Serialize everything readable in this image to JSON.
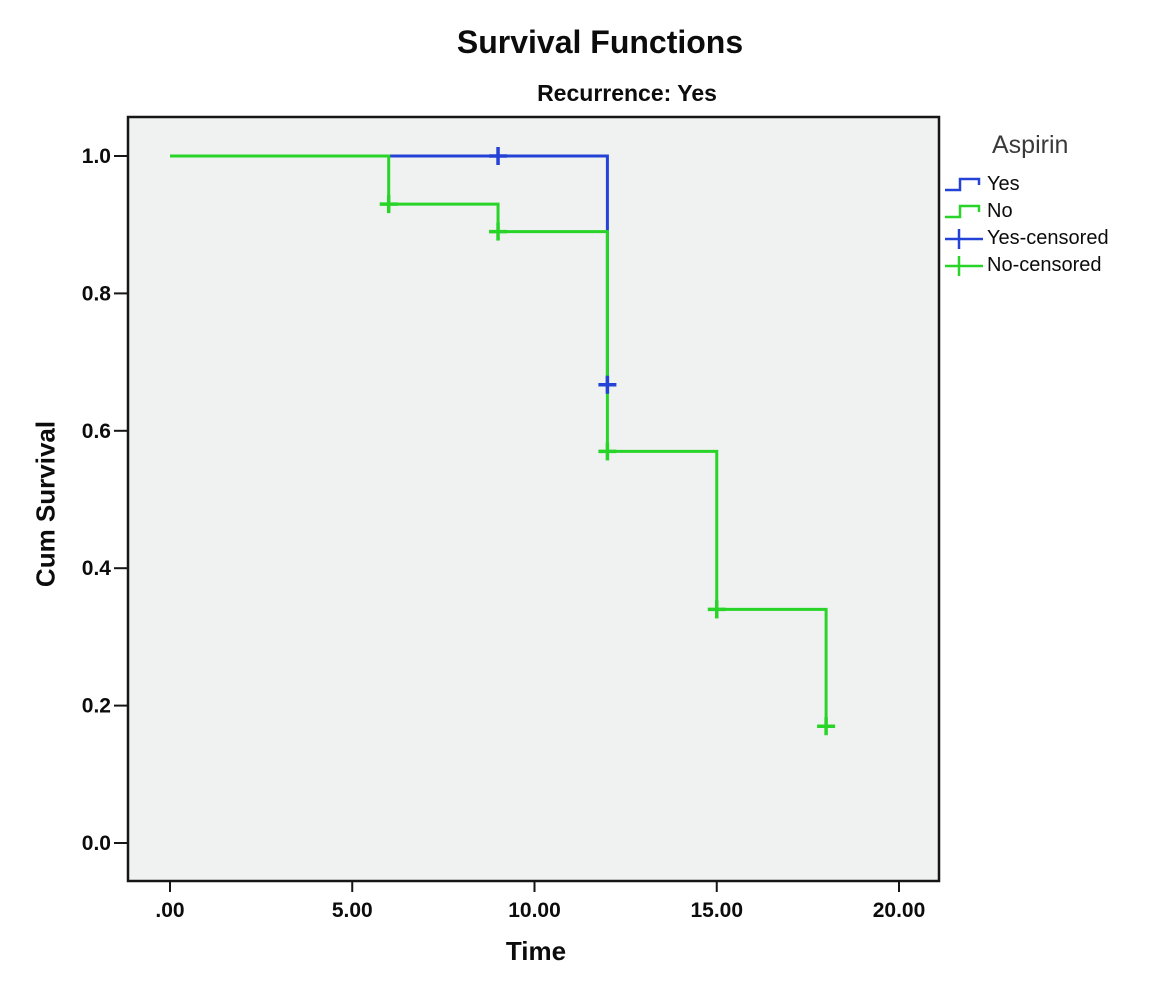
{
  "chart_data": {
    "type": "line",
    "subtype": "kaplan-meier-step-survival",
    "title": "Survival Functions",
    "subtitle": "Recurrence: Yes",
    "xlabel": "Time",
    "ylabel": "Cum Survival",
    "grid": false,
    "plot_background": "#eff2f0",
    "axis_color": "#161616",
    "xlim": [
      -1.15,
      21.1
    ],
    "ylim": [
      -0.055,
      1.057
    ],
    "x_ticks": [
      {
        "label": ".00",
        "value": 0
      },
      {
        "label": "5.00",
        "value": 5
      },
      {
        "label": "10.00",
        "value": 10
      },
      {
        "label": "15.00",
        "value": 15
      },
      {
        "label": "20.00",
        "value": 20
      }
    ],
    "y_ticks": [
      {
        "label": "0.0",
        "value": 0.0
      },
      {
        "label": "0.2",
        "value": 0.2
      },
      {
        "label": "0.4",
        "value": 0.4
      },
      {
        "label": "0.6",
        "value": 0.6
      },
      {
        "label": "0.8",
        "value": 0.8
      },
      {
        "label": "1.0",
        "value": 1.0
      }
    ],
    "series": [
      {
        "name": "Yes",
        "color": "#2442d6",
        "points": [
          [
            0,
            1.0
          ],
          [
            12,
            1.0
          ],
          [
            12,
            0.667
          ]
        ],
        "censored": [
          [
            9,
            1.0
          ],
          [
            12,
            0.667
          ]
        ]
      },
      {
        "name": "No",
        "color": "#28d428",
        "points": [
          [
            0,
            1.0
          ],
          [
            6,
            1.0
          ],
          [
            6,
            0.93
          ],
          [
            9,
            0.93
          ],
          [
            9,
            0.89
          ],
          [
            12,
            0.89
          ],
          [
            12,
            0.57
          ],
          [
            15,
            0.57
          ],
          [
            15,
            0.34
          ],
          [
            18,
            0.34
          ],
          [
            18,
            0.17
          ]
        ],
        "censored": [
          [
            6,
            0.93
          ],
          [
            9,
            0.89
          ],
          [
            12,
            0.57
          ],
          [
            15,
            0.34
          ],
          [
            18,
            0.17
          ]
        ]
      }
    ],
    "legend": {
      "title": "Aspirin",
      "position": "right",
      "entries": [
        {
          "label": "Yes",
          "color": "#2442d6",
          "glyph": "step-line"
        },
        {
          "label": "No",
          "color": "#28d428",
          "glyph": "step-line"
        },
        {
          "label": "Yes-censored",
          "color": "#2442d6",
          "glyph": "censored-plus"
        },
        {
          "label": "No-censored",
          "color": "#28d428",
          "glyph": "censored-plus"
        }
      ]
    }
  }
}
